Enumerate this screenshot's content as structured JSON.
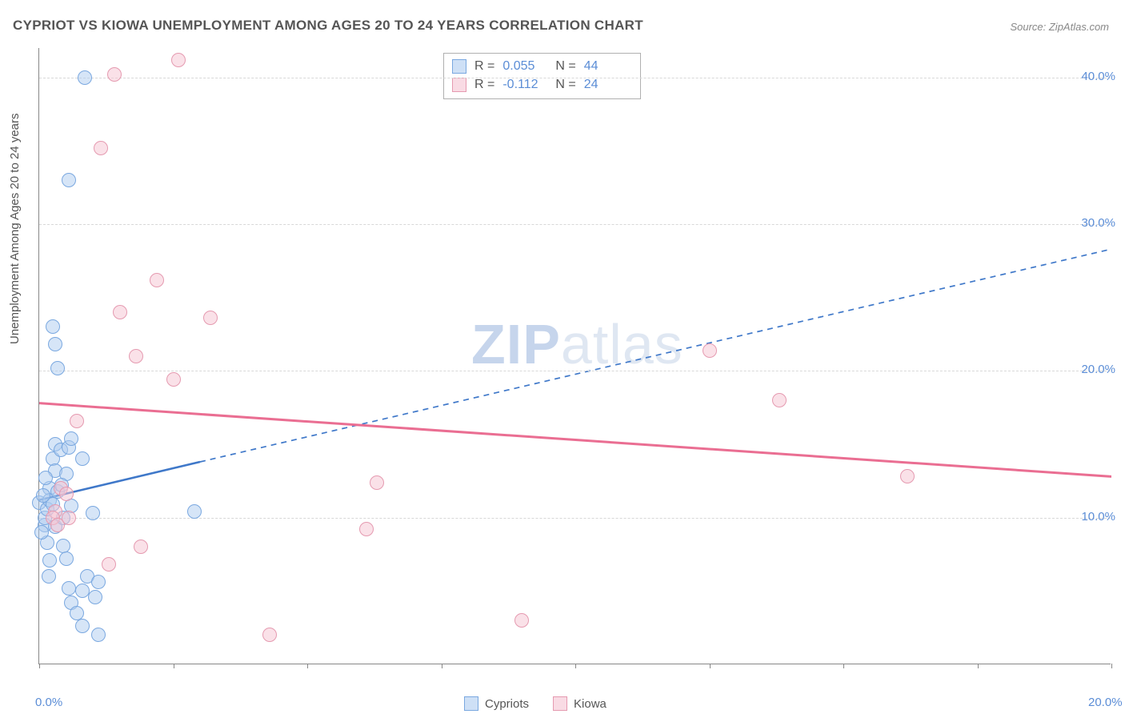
{
  "title": "CYPRIOT VS KIOWA UNEMPLOYMENT AMONG AGES 20 TO 24 YEARS CORRELATION CHART",
  "source": "Source: ZipAtlas.com",
  "y_axis_label": "Unemployment Among Ages 20 to 24 years",
  "watermark_zip": "ZIP",
  "watermark_atlas": "atlas",
  "chart": {
    "type": "scatter",
    "xlim": [
      0,
      20
    ],
    "ylim": [
      0,
      42
    ],
    "x_ticks": [
      0,
      2.5,
      5,
      7.5,
      10,
      12.5,
      15,
      17.5,
      20
    ],
    "x_tick_labels": {
      "0": "0.0%",
      "20": "20.0%"
    },
    "y_gridlines": [
      10,
      20,
      30,
      40
    ],
    "y_tick_labels": {
      "10": "10.0%",
      "20": "20.0%",
      "30": "30.0%",
      "40": "40.0%"
    },
    "background": "#ffffff",
    "grid_color": "#d8d8d8",
    "axis_color": "#888888",
    "point_radius": 9,
    "series": [
      {
        "name": "Cypriots",
        "color_fill": "rgba(173,203,240,0.5)",
        "color_stroke": "#7aa8e0",
        "trend": {
          "x1": 0,
          "y1": 11.2,
          "x2_solid": 3.0,
          "y2_solid": 13.8,
          "x2": 20,
          "y2": 28.3,
          "color": "#3f78c9",
          "width": 2.5,
          "dash_after_solid": true
        },
        "stats": {
          "R_label": "R =",
          "R": "0.055",
          "N_label": "N =",
          "N": "44"
        },
        "points": [
          [
            0.0,
            11.0
          ],
          [
            0.1,
            9.5
          ],
          [
            0.1,
            10.0
          ],
          [
            0.15,
            10.6
          ],
          [
            0.2,
            12.0
          ],
          [
            0.2,
            11.2
          ],
          [
            0.25,
            14.0
          ],
          [
            0.3,
            13.2
          ],
          [
            0.3,
            15.0
          ],
          [
            0.35,
            11.8
          ],
          [
            0.4,
            14.6
          ],
          [
            0.5,
            13.0
          ],
          [
            0.55,
            14.8
          ],
          [
            0.6,
            15.4
          ],
          [
            0.3,
            9.4
          ],
          [
            0.45,
            8.1
          ],
          [
            0.5,
            7.2
          ],
          [
            0.55,
            5.2
          ],
          [
            0.6,
            4.2
          ],
          [
            0.7,
            3.5
          ],
          [
            0.8,
            2.6
          ],
          [
            0.8,
            5.0
          ],
          [
            0.9,
            6.0
          ],
          [
            1.0,
            10.3
          ],
          [
            1.05,
            4.6
          ],
          [
            1.1,
            2.0
          ],
          [
            1.1,
            5.6
          ],
          [
            0.35,
            20.2
          ],
          [
            0.3,
            21.8
          ],
          [
            0.25,
            23.0
          ],
          [
            0.85,
            40.0
          ],
          [
            0.55,
            33.0
          ],
          [
            2.9,
            10.4
          ],
          [
            0.8,
            14.0
          ],
          [
            0.15,
            8.3
          ],
          [
            0.2,
            7.1
          ],
          [
            0.18,
            6.0
          ],
          [
            0.12,
            12.7
          ],
          [
            0.42,
            12.2
          ],
          [
            0.45,
            10.0
          ],
          [
            0.25,
            10.9
          ],
          [
            0.05,
            9.0
          ],
          [
            0.08,
            11.5
          ],
          [
            0.6,
            10.8
          ]
        ]
      },
      {
        "name": "Kiowa",
        "color_fill": "rgba(245,195,210,0.5)",
        "color_stroke": "#e59ab0",
        "trend": {
          "x1": 0,
          "y1": 17.8,
          "x2": 20,
          "y2": 12.8,
          "color": "#ea6e92",
          "width": 3,
          "dash_after_solid": false
        },
        "stats": {
          "R_label": "R =",
          "R": "-0.112",
          "N_label": "N =",
          "N": "24"
        },
        "points": [
          [
            0.3,
            10.4
          ],
          [
            0.25,
            10.0
          ],
          [
            0.35,
            9.5
          ],
          [
            0.4,
            12.0
          ],
          [
            0.5,
            11.6
          ],
          [
            0.55,
            10.0
          ],
          [
            1.4,
            40.2
          ],
          [
            2.6,
            41.2
          ],
          [
            1.15,
            35.2
          ],
          [
            1.5,
            24.0
          ],
          [
            2.2,
            26.2
          ],
          [
            3.2,
            23.6
          ],
          [
            1.8,
            21.0
          ],
          [
            2.5,
            19.4
          ],
          [
            0.7,
            16.6
          ],
          [
            1.9,
            8.0
          ],
          [
            1.3,
            6.8
          ],
          [
            4.3,
            2.0
          ],
          [
            6.1,
            9.2
          ],
          [
            6.3,
            12.4
          ],
          [
            9.0,
            3.0
          ],
          [
            12.5,
            21.4
          ],
          [
            13.8,
            18.0
          ],
          [
            16.2,
            12.8
          ]
        ]
      }
    ]
  },
  "legend": {
    "label1": "Cypriots",
    "label2": "Kiowa"
  }
}
